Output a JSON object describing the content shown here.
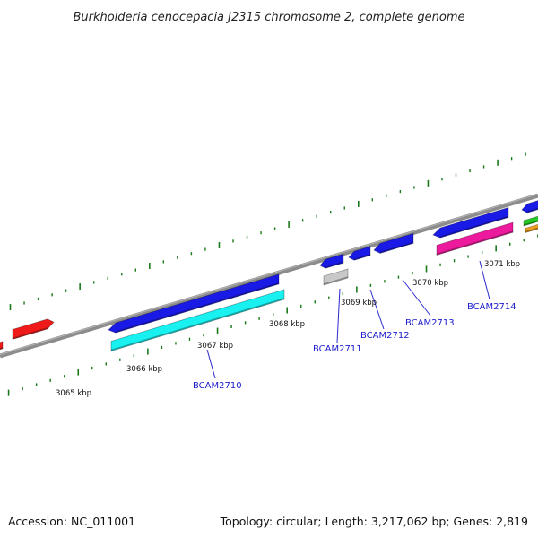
{
  "title": "Burkholderia cenocepacia J2315 chromosome 2, complete genome",
  "footer": {
    "accession": "Accession: NC_011001",
    "summary": "Topology: circular; Length: 3,217,062 bp; Genes: 2,819"
  },
  "colors": {
    "backbone": "#8c8c8c",
    "ticks": "#1a7a1a",
    "blue": "#1a1ae6",
    "cyan": "#19f0f0",
    "red": "#f01a1a",
    "gray": "#c8c8c8",
    "pink": "#ee1a9e",
    "green": "#22cc22",
    "orange": "#f0a020",
    "label": "#1c1ccc"
  },
  "scale_labels": [
    "3065 kbp",
    "3066 kbp",
    "3067 kbp",
    "3068 kbp",
    "3069 kbp",
    "3070 kbp",
    "3071 kbp"
  ],
  "gene_labels": [
    "BCAM2710",
    "BCAM2711",
    "BCAM2712",
    "BCAM2713",
    "BCAM2714"
  ]
}
